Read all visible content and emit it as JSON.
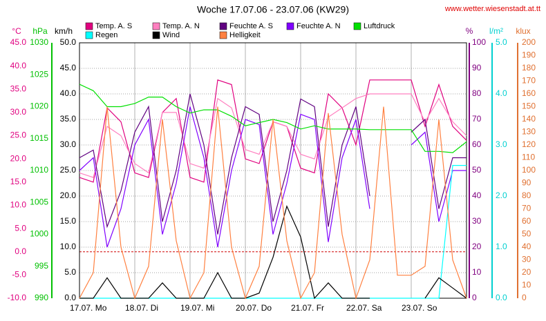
{
  "chart_data": {
    "type": "line",
    "title": "Woche 17.07.06 - 23.07.06 (KW29)",
    "source": "www.wetter.wiesenstadt.at.tt",
    "categories": [
      "17.07.  Mo",
      null,
      null,
      null,
      "18.07.  Di",
      null,
      null,
      null,
      "19.07.  Mi",
      null,
      null,
      null,
      "20.07.  Do",
      null,
      null,
      null,
      "21.07.  Fr",
      null,
      null,
      null,
      "22.07.  Sa",
      null,
      null,
      null,
      "23.07.  So",
      null,
      null,
      null,
      null
    ],
    "axes": [
      {
        "label": "°C",
        "color": "#e0007f",
        "ylim": [
          -10,
          45
        ],
        "zero_line": true,
        "yticks": [
          {
            "value": -10,
            "label": "-10.0"
          },
          {
            "value": -5,
            "label": "-5.0"
          },
          {
            "value": 0,
            "label": "0.0"
          },
          {
            "value": 5,
            "label": "5.0"
          },
          {
            "value": 10,
            "label": "10.0"
          },
          {
            "value": 15,
            "label": "15.0"
          },
          {
            "value": 20,
            "label": "20.0"
          },
          {
            "value": 25,
            "label": "25.0"
          },
          {
            "value": 30,
            "label": "30.0"
          },
          {
            "value": 35,
            "label": "35.0"
          },
          {
            "value": 40,
            "label": "40.0"
          },
          {
            "value": 45,
            "label": "45.0"
          }
        ]
      },
      {
        "label": "hPa",
        "color": "#00c000",
        "ylim": [
          990,
          1030
        ],
        "yticks": [
          990,
          995,
          1000,
          1005,
          1010,
          1015,
          1020,
          1025,
          1030
        ]
      },
      {
        "label": "km/h",
        "color": "#000000",
        "ylim": [
          0,
          50
        ],
        "grid": true,
        "yticks": [
          {
            "value": 0,
            "label": "0.0"
          },
          {
            "value": 5,
            "label": "5.0"
          },
          {
            "value": 10,
            "label": "10.0"
          },
          {
            "value": 15,
            "label": "15.0"
          },
          {
            "value": 20,
            "label": "20.0"
          },
          {
            "value": 25,
            "label": "25.0"
          },
          {
            "value": 30,
            "label": "30.0"
          },
          {
            "value": 35,
            "label": "35.0"
          },
          {
            "value": 40,
            "label": "40.0"
          },
          {
            "value": 45,
            "label": "45.0"
          },
          {
            "value": 50,
            "label": "50.0"
          }
        ]
      },
      {
        "label": "%",
        "color": "#800080",
        "ylim": [
          0,
          100
        ],
        "yticks": [
          0,
          10,
          20,
          30,
          40,
          50,
          60,
          70,
          80,
          90,
          100
        ]
      },
      {
        "label": "l/m²",
        "color": "#00d0d0",
        "ylim": [
          0,
          5
        ],
        "yticks": [
          {
            "value": 0,
            "label": "0.0"
          },
          {
            "value": 1,
            "label": "1.0"
          },
          {
            "value": 2,
            "label": "2.0"
          },
          {
            "value": 3,
            "label": "3.0"
          },
          {
            "value": 4,
            "label": "4.0"
          },
          {
            "value": 5,
            "label": "5.0"
          }
        ]
      },
      {
        "label": "klux",
        "color": "#e07030",
        "ylim": [
          0,
          200
        ],
        "yticks": [
          0,
          10,
          20,
          30,
          40,
          50,
          60,
          70,
          80,
          90,
          100,
          110,
          120,
          130,
          140,
          150,
          160,
          170,
          180,
          190,
          200
        ]
      }
    ],
    "series": [
      {
        "name": "Temp. A. S",
        "color": "#e0007f",
        "axis": 0,
        "values": [
          16,
          15,
          31,
          28,
          17,
          16,
          30,
          33,
          16,
          15,
          37,
          36,
          20,
          19,
          28,
          27,
          18,
          17,
          34,
          31,
          23,
          37,
          37,
          37,
          37,
          27,
          36,
          27,
          24
        ]
      },
      {
        "name": "Temp. A. N",
        "color": "#ff80c0",
        "axis": 0,
        "values": [
          17,
          16,
          27,
          25,
          19,
          17,
          30,
          30,
          19,
          18,
          33,
          31,
          22,
          21,
          28,
          27,
          21,
          20,
          29,
          31,
          33,
          34,
          34,
          34,
          34,
          28,
          33,
          28,
          25
        ]
      },
      {
        "name": "Feuchte A. S",
        "color": "#600080",
        "axis": 3,
        "values": [
          55,
          58,
          28,
          42,
          65,
          75,
          30,
          50,
          80,
          60,
          25,
          55,
          75,
          72,
          30,
          50,
          78,
          75,
          28,
          60,
          75,
          40,
          null,
          null,
          65,
          70,
          35,
          55,
          55
        ]
      },
      {
        "name": "Feuchte A. N",
        "color": "#8000ff",
        "axis": 3,
        "values": [
          50,
          55,
          20,
          35,
          60,
          70,
          25,
          45,
          75,
          55,
          20,
          50,
          70,
          68,
          25,
          45,
          72,
          70,
          22,
          55,
          70,
          35,
          null,
          null,
          60,
          65,
          30,
          50,
          50
        ]
      },
      {
        "name": "Luftdruck",
        "color": "#00e000",
        "axis": 1,
        "values": [
          1023.5,
          1022.5,
          1020,
          1020,
          1020.5,
          1021.5,
          1021.5,
          1020,
          1019,
          1019.5,
          1019.5,
          1018.5,
          1017,
          1017.5,
          1018,
          1017.5,
          1016.5,
          1017,
          1016.5,
          1016.5,
          1016.5,
          1016.4,
          1016.4,
          1016.4,
          1016.4,
          1013,
          1013,
          1012.8,
          1014.5
        ]
      },
      {
        "name": "Regen",
        "color": "#00ffff",
        "axis": 4,
        "values": [
          0,
          0,
          0,
          0,
          0,
          0,
          0,
          0,
          0,
          0,
          0,
          0,
          0,
          0,
          0,
          0,
          0,
          0,
          0,
          0,
          0,
          0,
          0,
          0,
          0,
          0,
          0,
          2.6,
          2.6
        ]
      },
      {
        "name": "Wind",
        "color": "#000000",
        "axis": 2,
        "values": [
          0,
          0,
          4,
          0,
          0,
          0,
          3,
          0,
          0,
          0,
          5,
          0,
          0,
          1,
          8,
          18,
          12,
          0,
          3,
          0,
          0,
          0,
          null,
          null,
          null,
          0,
          4,
          2,
          0
        ]
      },
      {
        "name": "Helligkeit",
        "color": "#ff8040",
        "axis": 5,
        "values": [
          0,
          20,
          150,
          40,
          0,
          25,
          140,
          45,
          0,
          20,
          150,
          40,
          0,
          25,
          140,
          45,
          0,
          20,
          145,
          50,
          0,
          30,
          150,
          18,
          18,
          25,
          140,
          30,
          0
        ]
      }
    ]
  }
}
